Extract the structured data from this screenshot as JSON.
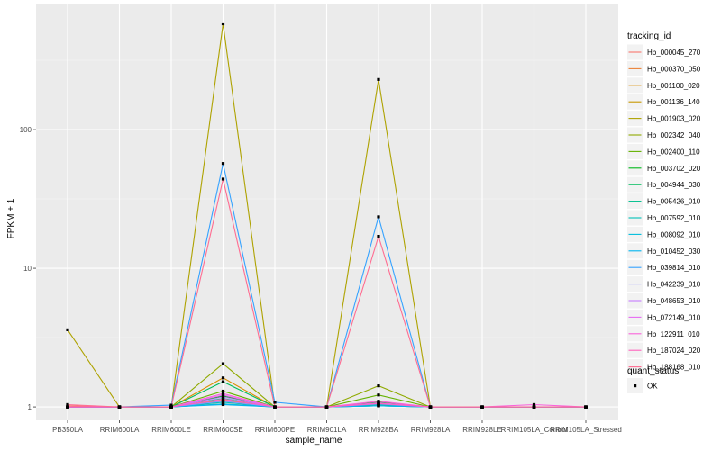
{
  "chart_data": {
    "type": "line",
    "xlabel": "sample_name",
    "ylabel": "FPKM + 1",
    "y_scale": "log10",
    "ylim": [
      0.8,
      800
    ],
    "grid": true,
    "legend_position": "right",
    "categories": [
      "PB350LA",
      "RRIM600LA",
      "RRIM600LE",
      "RRIM600SE",
      "RRIM600PE",
      "RRIM901LA",
      "RRIM928BA",
      "RRIM928LA",
      "RRIM928LE",
      "RRIM105LA_Control",
      "RRIM105LA_Stressed"
    ],
    "y_ticks": [
      1,
      10,
      100
    ],
    "y_tick_labels": [
      "1",
      "10",
      "100"
    ],
    "legend": {
      "title": "tracking_id",
      "shape_title": "quant_status",
      "shape_label": "OK"
    },
    "series": [
      {
        "name": "Hb_000045_270",
        "color": "#F8766D",
        "values": [
          1.02,
          1.0,
          1.0,
          1.12,
          1.0,
          1.0,
          1.05,
          1.0,
          1.0,
          1.0,
          1.0
        ]
      },
      {
        "name": "Hb_000370_050",
        "color": "#EC8239",
        "values": [
          1.0,
          1.0,
          1.0,
          1.05,
          1.0,
          1.0,
          1.02,
          1.0,
          1.0,
          1.0,
          1.0
        ]
      },
      {
        "name": "Hb_001100_020",
        "color": "#DB8E00",
        "values": [
          1.0,
          1.0,
          1.0,
          1.62,
          1.0,
          1.0,
          1.08,
          1.0,
          1.0,
          1.0,
          1.0
        ]
      },
      {
        "name": "Hb_001136_140",
        "color": "#C79800",
        "values": [
          1.0,
          1.0,
          1.0,
          1.1,
          1.0,
          1.0,
          1.03,
          1.0,
          1.0,
          1.0,
          1.0
        ]
      },
      {
        "name": "Hb_001903_020",
        "color": "#AEA200",
        "values": [
          3.6,
          1.0,
          1.0,
          580,
          1.0,
          1.0,
          230,
          1.0,
          1.0,
          1.0,
          1.0
        ]
      },
      {
        "name": "Hb_002342_040",
        "color": "#8FAA00",
        "values": [
          1.0,
          1.0,
          1.0,
          2.05,
          1.0,
          1.0,
          1.42,
          1.0,
          1.0,
          1.0,
          1.0
        ]
      },
      {
        "name": "Hb_002400_110",
        "color": "#64B200",
        "values": [
          1.0,
          1.0,
          1.0,
          1.3,
          1.0,
          1.0,
          1.22,
          1.0,
          1.0,
          1.0,
          1.0
        ]
      },
      {
        "name": "Hb_003702_020",
        "color": "#00B81B",
        "values": [
          1.0,
          1.0,
          1.0,
          1.2,
          1.0,
          1.0,
          1.08,
          1.0,
          1.0,
          1.0,
          1.0
        ]
      },
      {
        "name": "Hb_004944_030",
        "color": "#00BD5C",
        "values": [
          1.0,
          1.0,
          1.0,
          1.52,
          1.0,
          1.0,
          1.05,
          1.0,
          1.0,
          1.0,
          1.0
        ]
      },
      {
        "name": "Hb_005426_010",
        "color": "#00C08E",
        "values": [
          1.0,
          1.0,
          1.0,
          1.15,
          1.0,
          1.0,
          1.04,
          1.0,
          1.0,
          1.0,
          1.0
        ]
      },
      {
        "name": "Hb_007592_010",
        "color": "#00C1B7",
        "values": [
          1.0,
          1.0,
          1.0,
          1.08,
          1.0,
          1.0,
          1.02,
          1.0,
          1.0,
          1.0,
          1.0
        ]
      },
      {
        "name": "Hb_008092_010",
        "color": "#00BDDC",
        "values": [
          1.0,
          1.0,
          1.0,
          1.05,
          1.0,
          1.0,
          1.02,
          1.0,
          1.0,
          1.0,
          1.0
        ]
      },
      {
        "name": "Hb_010452_030",
        "color": "#00B4F0",
        "values": [
          1.0,
          1.0,
          1.0,
          1.04,
          1.0,
          1.0,
          1.02,
          1.0,
          1.0,
          1.0,
          1.0
        ]
      },
      {
        "name": "Hb_039814_010",
        "color": "#35A2FF",
        "values": [
          1.0,
          1.0,
          1.03,
          57,
          1.08,
          1.0,
          23.5,
          1.0,
          1.0,
          1.0,
          1.0
        ]
      },
      {
        "name": "Hb_042239_010",
        "color": "#9590FF",
        "values": [
          1.0,
          1.0,
          1.0,
          1.1,
          1.0,
          1.0,
          1.05,
          1.0,
          1.0,
          1.0,
          1.0
        ]
      },
      {
        "name": "Hb_048653_010",
        "color": "#C77CFF",
        "values": [
          1.0,
          1.0,
          1.0,
          1.18,
          1.0,
          1.0,
          1.06,
          1.0,
          1.0,
          1.0,
          1.0
        ]
      },
      {
        "name": "Hb_072149_010",
        "color": "#E76BF3",
        "values": [
          1.0,
          1.0,
          1.0,
          1.22,
          1.0,
          1.0,
          1.07,
          1.0,
          1.0,
          1.0,
          1.0
        ]
      },
      {
        "name": "Hb_122911_010",
        "color": "#FA62DB",
        "values": [
          1.0,
          1.0,
          1.0,
          1.25,
          1.0,
          1.0,
          1.1,
          1.0,
          1.0,
          1.04,
          1.0
        ]
      },
      {
        "name": "Hb_187024_020",
        "color": "#FF62BC",
        "values": [
          1.0,
          1.0,
          1.0,
          1.14,
          1.0,
          1.0,
          1.06,
          1.0,
          1.0,
          1.0,
          1.0
        ]
      },
      {
        "name": "Hb_188168_010",
        "color": "#FF6C91",
        "values": [
          1.04,
          1.0,
          1.0,
          44,
          1.0,
          1.0,
          17,
          1.0,
          1.0,
          1.0,
          1.0
        ]
      }
    ]
  }
}
